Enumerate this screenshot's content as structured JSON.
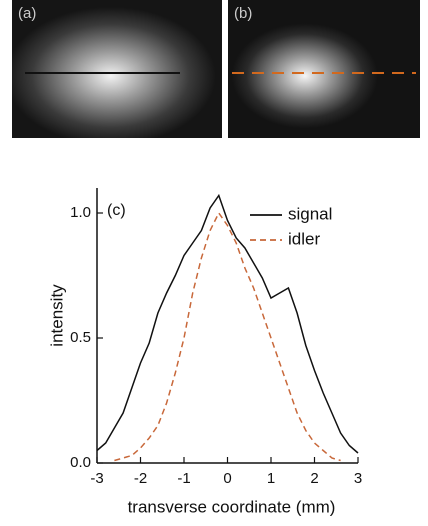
{
  "image_labels": [
    "(a)",
    "(b)"
  ],
  "chart_data": {
    "type": "line",
    "annotation": "(c)",
    "xlabel": "transverse coordinate (mm)",
    "ylabel": "intensity",
    "x": [
      -3,
      -2.8,
      -2.6,
      -2.4,
      -2.2,
      -2,
      -1.8,
      -1.6,
      -1.4,
      -1.2,
      -1,
      -0.8,
      -0.6,
      -0.4,
      -0.2,
      0,
      0.2,
      0.4,
      0.6,
      0.8,
      1,
      1.2,
      1.4,
      1.6,
      1.8,
      2,
      2.2,
      2.4,
      2.6,
      2.8,
      3
    ],
    "series": [
      {
        "name": "signal",
        "color": "#111111",
        "dash": false,
        "values": [
          0.05,
          0.08,
          0.14,
          0.2,
          0.3,
          0.4,
          0.48,
          0.6,
          0.68,
          0.75,
          0.83,
          0.88,
          0.93,
          1.02,
          1.07,
          0.97,
          0.9,
          0.86,
          0.8,
          0.74,
          0.66,
          0.68,
          0.7,
          0.6,
          0.47,
          0.37,
          0.28,
          0.2,
          0.12,
          0.07,
          0.04
        ]
      },
      {
        "name": "idler",
        "color": "#c8683a",
        "dash": true,
        "values": [
          null,
          null,
          0.01,
          0.02,
          0.03,
          0.06,
          0.1,
          0.15,
          0.24,
          0.36,
          0.5,
          0.68,
          0.82,
          0.93,
          1.0,
          0.95,
          0.88,
          0.78,
          0.7,
          0.6,
          0.5,
          0.4,
          0.3,
          0.2,
          0.13,
          0.08,
          0.05,
          0.02,
          0.01,
          null,
          null
        ]
      }
    ],
    "xlim": [
      -3,
      3
    ],
    "ylim": [
      0,
      1.1
    ],
    "xticks": [
      -3,
      -2,
      -1,
      0,
      1,
      2,
      3
    ],
    "yticks": [
      {
        "value": 0,
        "label": "0.0"
      },
      {
        "value": 0.5,
        "label": "0.5"
      },
      {
        "value": 1,
        "label": "1.0"
      }
    ],
    "legend": "upper right"
  }
}
